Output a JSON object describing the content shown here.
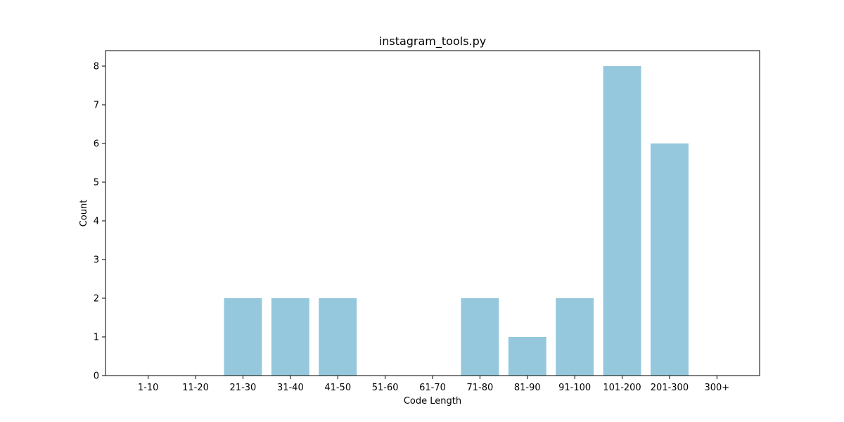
{
  "chart_data": {
    "type": "bar",
    "title": "instagram_tools.py",
    "xlabel": "Code Length",
    "ylabel": "Count",
    "categories": [
      "1-10",
      "11-20",
      "21-30",
      "31-40",
      "41-50",
      "51-60",
      "61-70",
      "71-80",
      "81-90",
      "91-100",
      "101-200",
      "201-300",
      "300+"
    ],
    "values": [
      0,
      0,
      2,
      2,
      2,
      0,
      0,
      2,
      1,
      2,
      8,
      6,
      0
    ],
    "ylim": [
      0,
      8.4
    ],
    "yticks": [
      0,
      1,
      2,
      3,
      4,
      5,
      6,
      7,
      8
    ],
    "bar_color": "#95c8dd",
    "grid": false,
    "legend": "none"
  }
}
